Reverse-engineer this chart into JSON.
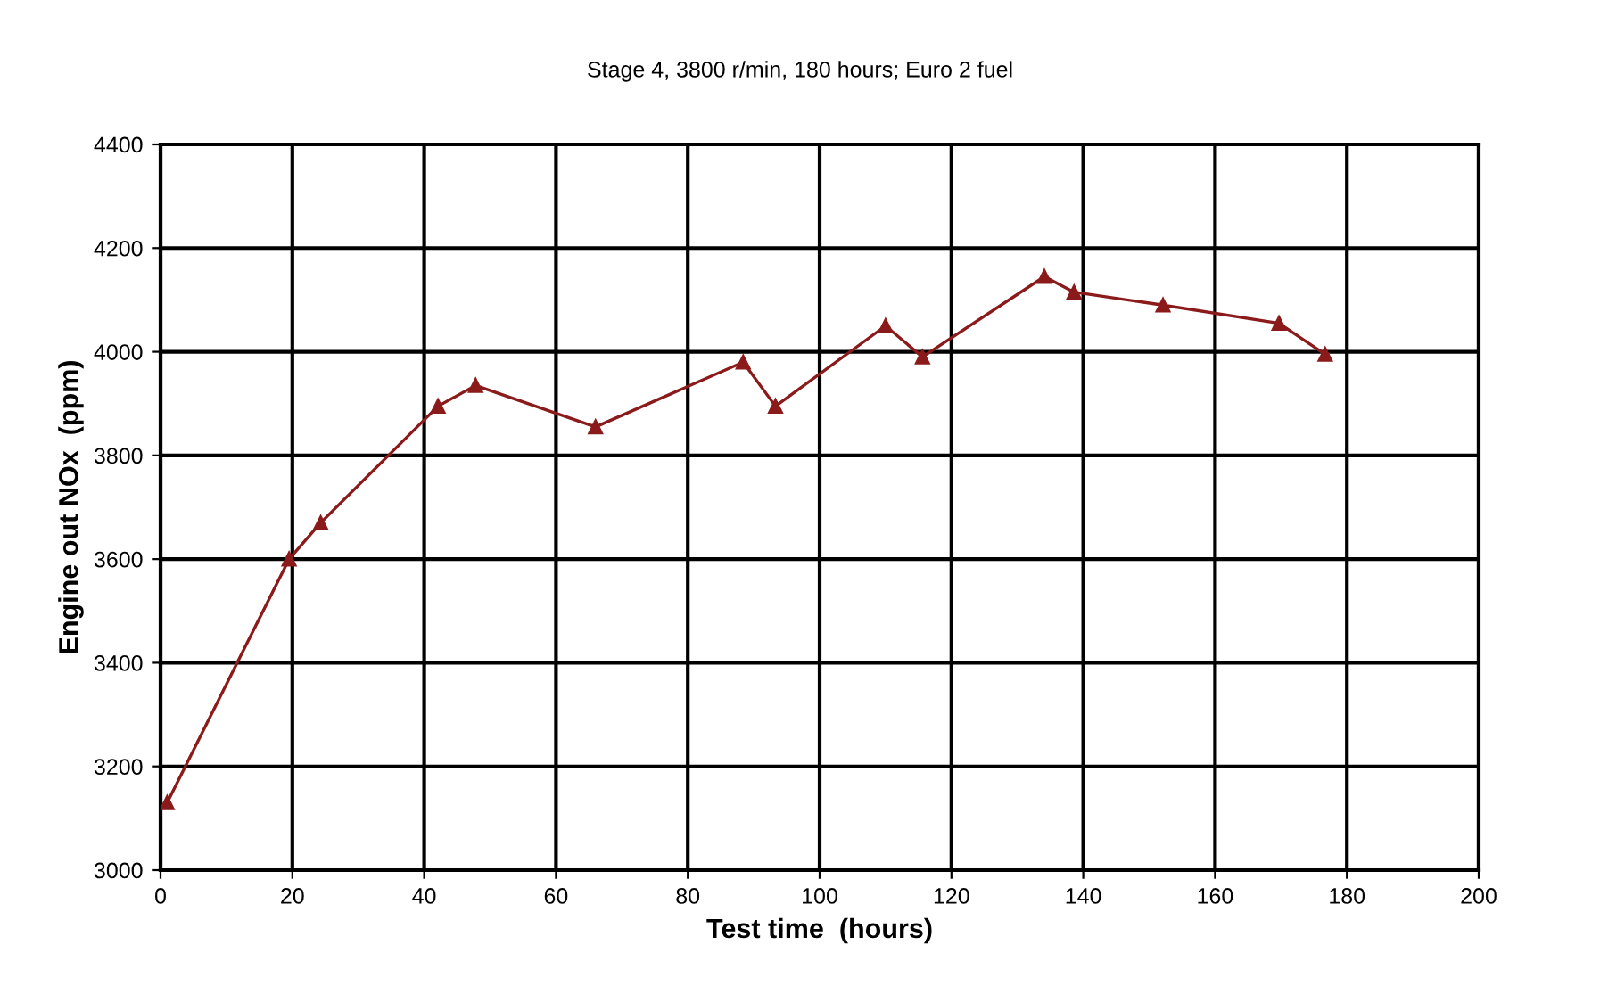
{
  "chart_data": {
    "type": "line",
    "title": "Stage 4, 3800 r/min, 180 hours; Euro 2 fuel",
    "xlabel": "Test time  (hours)",
    "ylabel": "Engine out NOx  (ppm)",
    "x": [
      1,
      19.5,
      24.3,
      42.1,
      47.8,
      66,
      88.4,
      93.3,
      110,
      115.6,
      134.1,
      138.6,
      152.1,
      169.7,
      176.7
    ],
    "series": [
      {
        "color": "#8b1a1a",
        "values": [
          3130,
          3600,
          3670,
          3895,
          3935,
          3855,
          3980,
          3895,
          4050,
          3990,
          4145,
          4115,
          4090,
          4055,
          3995
        ]
      }
    ],
    "xlim": [
      0,
      200
    ],
    "xticks": [
      0,
      20,
      40,
      60,
      80,
      100,
      120,
      140,
      160,
      180,
      200
    ],
    "ylim": [
      3000,
      4400
    ],
    "yticks": [
      3000,
      3200,
      3400,
      3600,
      3800,
      4000,
      4200,
      4400
    ],
    "grid": true,
    "marker": "triangle",
    "line_style": "solid"
  }
}
